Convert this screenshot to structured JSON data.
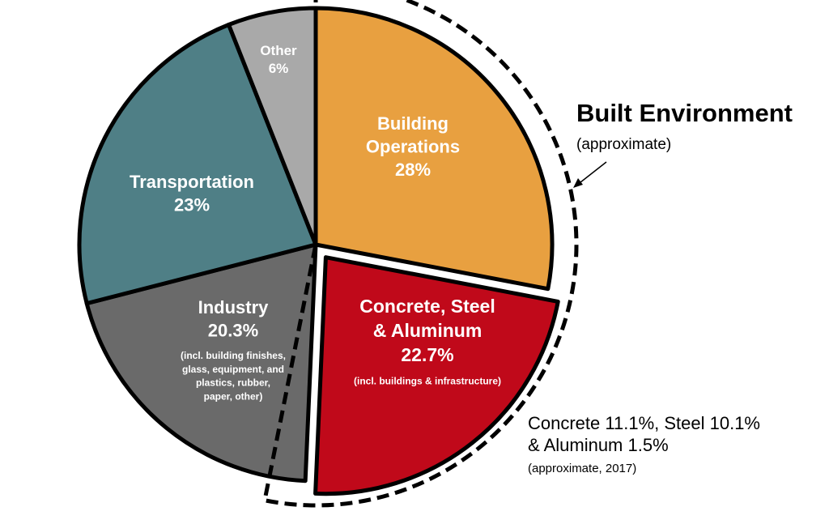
{
  "chart_data": {
    "type": "pie",
    "slices": [
      {
        "label": "Building Operations",
        "label_lines": [
          "Building",
          "Operations"
        ],
        "value": 28,
        "value_text": "28%",
        "color": "#E8A040",
        "note_lines": []
      },
      {
        "label": "Concrete, Steel & Aluminum",
        "label_lines": [
          "Concrete, Steel",
          "& Aluminum"
        ],
        "value": 22.7,
        "value_text": "22.7%",
        "color": "#C0091A",
        "exploded": true,
        "note_lines": [
          "(incl. buildings & infrastructure)"
        ]
      },
      {
        "label": "Industry",
        "label_lines": [
          "Industry"
        ],
        "value": 20.3,
        "value_text": "20.3%",
        "color": "#6A6A6A",
        "note_lines": [
          "(incl. building finishes,",
          "glass, equipment, and",
          "plastics, rubber,",
          "paper, other)"
        ]
      },
      {
        "label": "Transportation",
        "label_lines": [
          "Transportation"
        ],
        "value": 23,
        "value_text": "23%",
        "color": "#4F7F86",
        "note_lines": []
      },
      {
        "label": "Other",
        "label_lines": [
          "Other"
        ],
        "value": 6,
        "value_text": "6%",
        "color": "#A9A9A9",
        "note_lines": []
      }
    ],
    "group_annotation": {
      "title": "Built Environment",
      "subtitle": "(approximate)"
    },
    "breakdown_annotation": {
      "lines": [
        "Concrete 11.1%, Steel 10.1%",
        "& Aluminum 1.5%"
      ],
      "note": "(approximate, 2017)"
    }
  }
}
